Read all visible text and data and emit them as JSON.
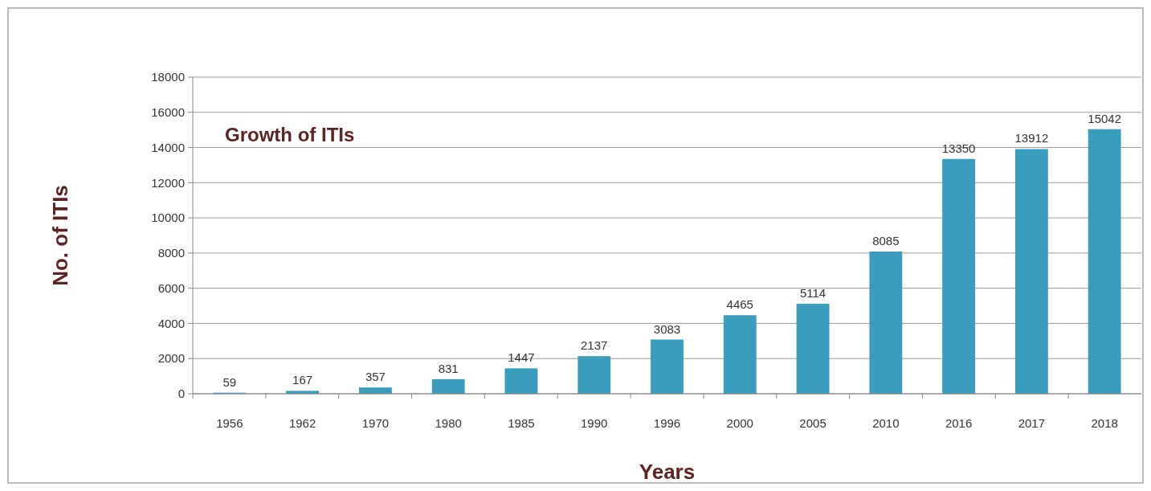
{
  "chart_data": {
    "type": "bar",
    "title": "Growth of ITIs",
    "xlabel": "Years",
    "ylabel": "No. of ITIs",
    "categories": [
      "1956",
      "1962",
      "1970",
      "1980",
      "1985",
      "1990",
      "1996",
      "2000",
      "2005",
      "2010",
      "2016",
      "2017",
      "2018"
    ],
    "values": [
      59,
      167,
      357,
      831,
      1447,
      2137,
      3083,
      4465,
      5114,
      8085,
      13350,
      13912,
      15042
    ],
    "data_labels": true,
    "color": "#3a9dbd",
    "ylim": [
      0,
      18000
    ],
    "yticks": [
      0,
      2000,
      4000,
      6000,
      8000,
      10000,
      12000,
      14000,
      16000,
      18000
    ],
    "grid": "y"
  }
}
